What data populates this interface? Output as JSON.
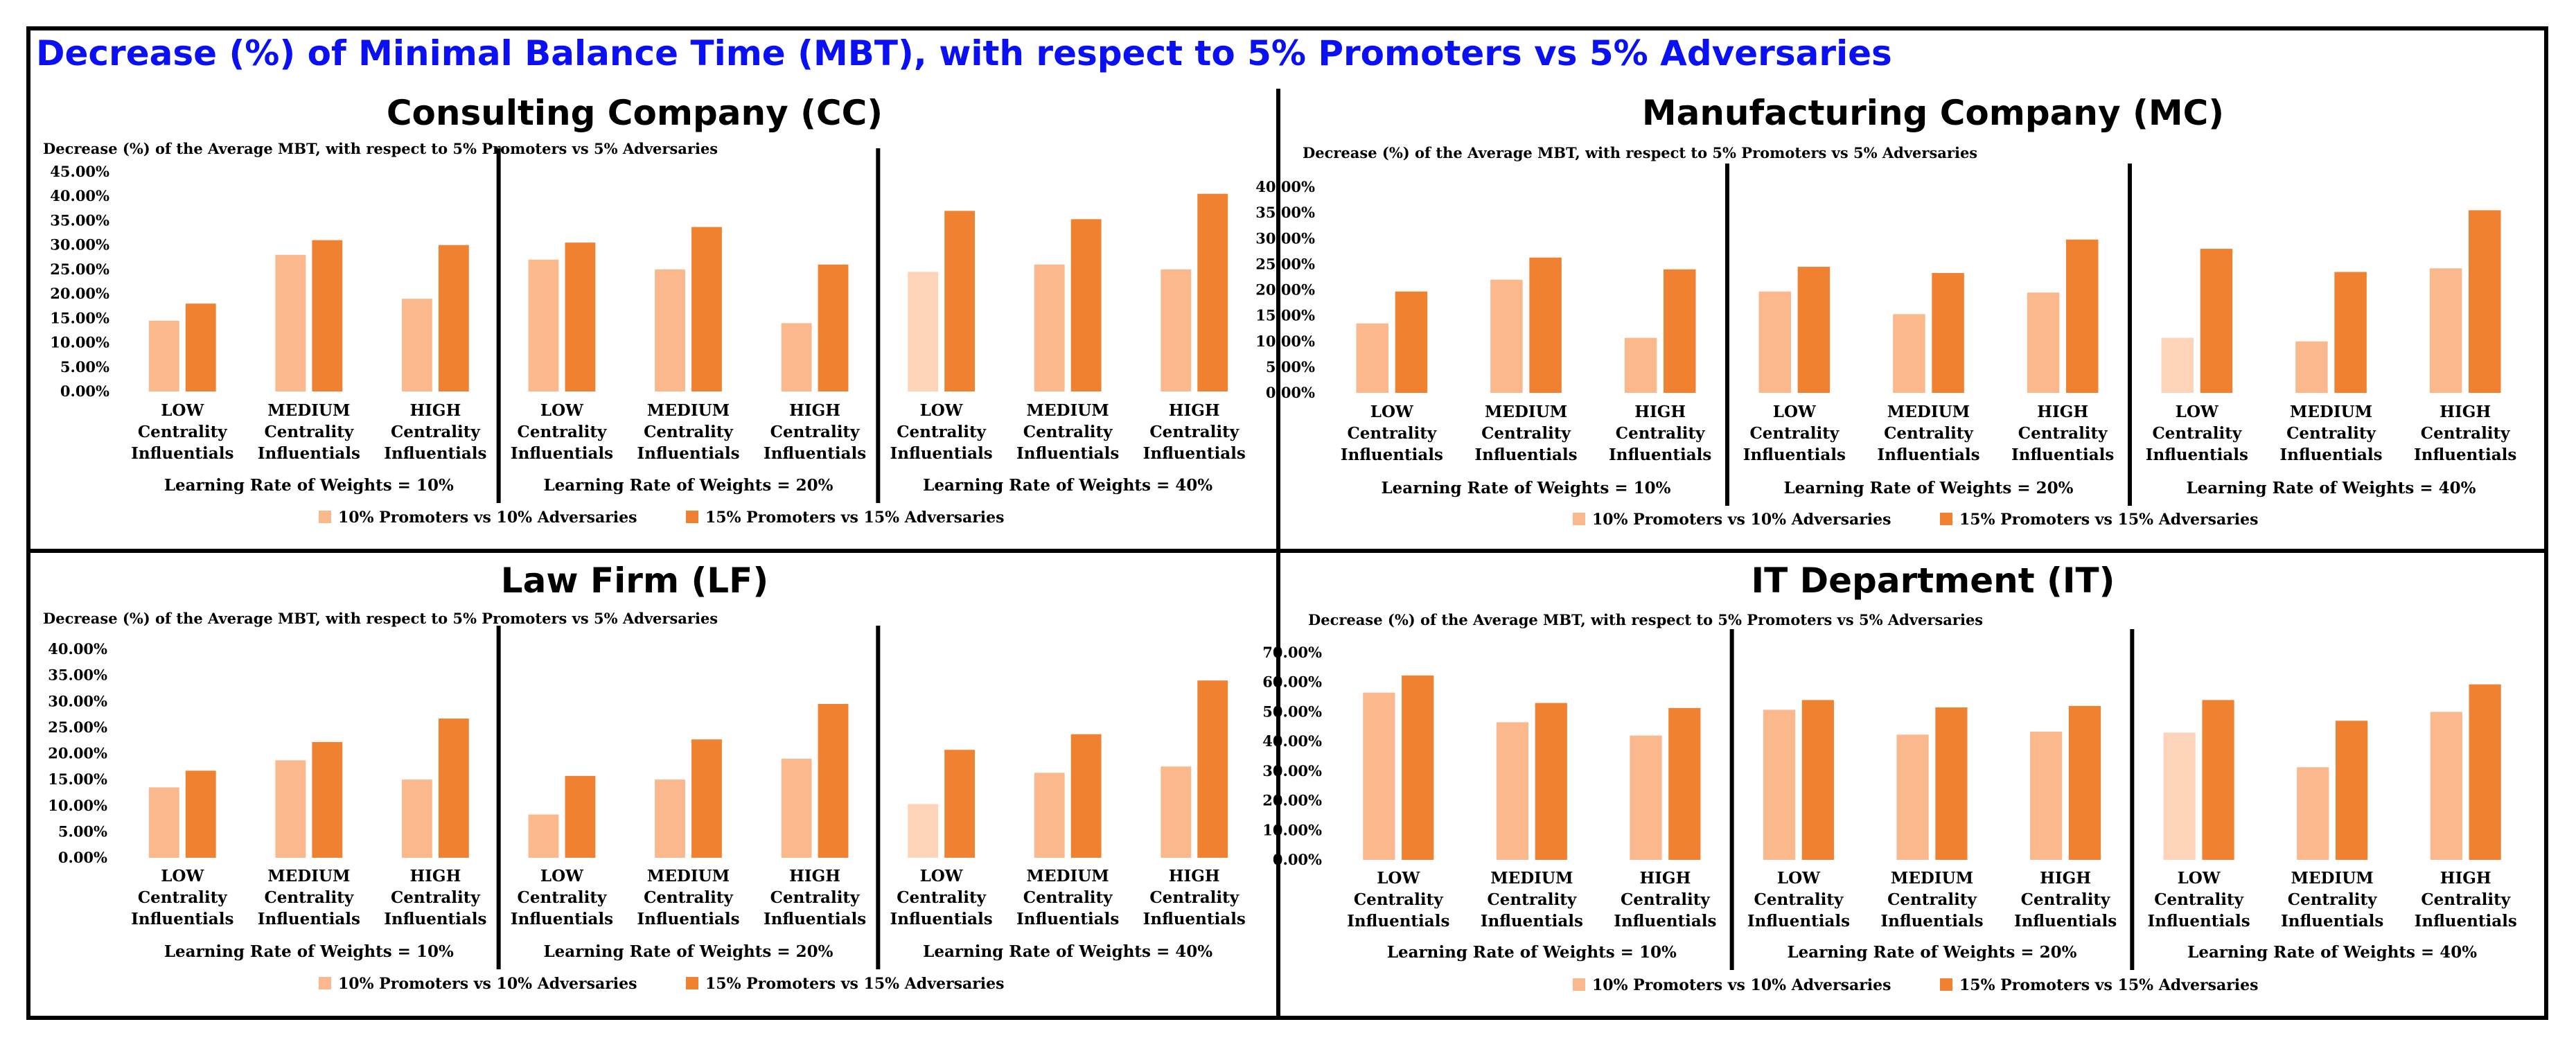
{
  "title": "Decrease (%) of Minimal Balance Time (MBT), with respect to 5% Promoters vs 5% Adversaries",
  "colors": {
    "light": "#fbb88d",
    "dark": "#f08131",
    "lightest": "#fdd3b9",
    "title": "#0b10f2"
  },
  "chart_data": [
    {
      "type": "bar",
      "title": "Consulting Company (CC)",
      "subtitle": "Decrease (%) of the Average MBT, with respect to 5% Promoters vs 5% Adversaries",
      "ylim": [
        0,
        45
      ],
      "yticks": [
        "0.00%",
        "5.00%",
        "10.00%",
        "15.00%",
        "20.00%",
        "25.00%",
        "30.00%",
        "35.00%",
        "40.00%",
        "45.00%"
      ],
      "groups": [
        {
          "label": "Learning Rate of Weights = 10%",
          "categories": [
            [
              "LOW",
              "Centrality",
              "Influentials"
            ],
            [
              "MEDIUM",
              "Centrality",
              "Influentials"
            ],
            [
              "HIGH",
              "Centrality",
              "Influentials"
            ]
          ],
          "series": [
            {
              "name": "10% Promoters vs 10% Adversaries",
              "values": [
                14.5,
                28,
                19
              ]
            },
            {
              "name": "15% Promoters vs 15% Adversaries",
              "values": [
                18,
                31,
                30
              ]
            }
          ]
        },
        {
          "label": "Learning Rate of Weights = 20%",
          "categories": [
            [
              "LOW",
              "Centrality",
              "Influentials"
            ],
            [
              "MEDIUM",
              "Centrality",
              "Influentials"
            ],
            [
              "HIGH",
              "Centrality",
              "Influentials"
            ]
          ],
          "series": [
            {
              "name": "10% Promoters vs 10% Adversaries",
              "values": [
                27,
                25,
                14
              ]
            },
            {
              "name": "15% Promoters vs 15% Adversaries",
              "values": [
                30.5,
                33.7,
                26
              ]
            }
          ]
        },
        {
          "label": "Learning Rate of Weights = 40%",
          "categories": [
            [
              "LOW",
              "Centrality",
              "Influentials"
            ],
            [
              "MEDIUM",
              "Centrality",
              "Influentials"
            ],
            [
              "HIGH",
              "Centrality",
              "Influentials"
            ]
          ],
          "series": [
            {
              "name": "10% Promoters vs 10% Adversaries",
              "values": [
                24.5,
                26,
                25
              ]
            },
            {
              "name": "15% Promoters vs 15% Adversaries",
              "values": [
                37,
                35.3,
                40.5
              ]
            }
          ]
        }
      ],
      "legend": [
        "10% Promoters vs 10% Adversaries",
        "15% Promoters vs 15% Adversaries"
      ]
    },
    {
      "type": "bar",
      "title": "Manufacturing Company (MC)",
      "subtitle": "Decrease (%) of the Average MBT, with respect to 5% Promoters vs 5% Adversaries",
      "ylim": [
        0,
        40
      ],
      "yticks": [
        "0.00%",
        "5.00%",
        "10.00%",
        "15.00%",
        "20.00%",
        "25.00%",
        "30.00%",
        "35.00%",
        "40.00%"
      ],
      "groups": [
        {
          "label": "Learning Rate of Weights = 10%",
          "categories": [
            [
              "LOW",
              "Centrality",
              "Influentials"
            ],
            [
              "MEDIUM",
              "Centrality",
              "Influentials"
            ],
            [
              "HIGH",
              "Centrality",
              "Influentials"
            ]
          ],
          "series": [
            {
              "name": "10% Promoters vs 10% Adversaries",
              "values": [
                13.5,
                22,
                10.7
              ]
            },
            {
              "name": "15% Promoters vs 15% Adversaries",
              "values": [
                19.7,
                26.3,
                24
              ]
            }
          ]
        },
        {
          "label": "Learning Rate of Weights = 20%",
          "categories": [
            [
              "LOW",
              "Centrality",
              "Influentials"
            ],
            [
              "MEDIUM",
              "Centrality",
              "Influentials"
            ],
            [
              "HIGH",
              "Centrality",
              "Influentials"
            ]
          ],
          "series": [
            {
              "name": "10% Promoters vs 10% Adversaries",
              "values": [
                19.7,
                15.3,
                19.5
              ]
            },
            {
              "name": "15% Promoters vs 15% Adversaries",
              "values": [
                24.5,
                23.3,
                29.8
              ]
            }
          ]
        },
        {
          "label": "Learning Rate of Weights = 40%",
          "categories": [
            [
              "LOW",
              "Centrality",
              "Influentials"
            ],
            [
              "MEDIUM",
              "Centrality",
              "Influentials"
            ],
            [
              "HIGH",
              "Centrality",
              "Influentials"
            ]
          ],
          "series": [
            {
              "name": "10% Promoters vs 10% Adversaries",
              "values": [
                10.7,
                10,
                24.2
              ]
            },
            {
              "name": "15% Promoters vs 15% Adversaries",
              "values": [
                28,
                23.5,
                35.5
              ]
            }
          ]
        }
      ],
      "legend": [
        "10% Promoters vs 10% Adversaries",
        "15% Promoters vs 15% Adversaries"
      ]
    },
    {
      "type": "bar",
      "title": "Law Firm (LF)",
      "subtitle": "Decrease (%) of the Average MBT, with respect to 5% Promoters vs 5% Adversaries",
      "ylim": [
        0,
        40
      ],
      "yticks": [
        "0.00%",
        "5.00%",
        "10.00%",
        "15.00%",
        "20.00%",
        "25.00%",
        "30.00%",
        "35.00%",
        "40.00%"
      ],
      "groups": [
        {
          "label": "Learning Rate of Weights = 10%",
          "categories": [
            [
              "LOW",
              "Centrality",
              "Influentials"
            ],
            [
              "MEDIUM",
              "Centrality",
              "Influentials"
            ],
            [
              "HIGH",
              "Centrality",
              "Influentials"
            ]
          ],
          "series": [
            {
              "name": "10% Promoters vs 10% Adversaries",
              "values": [
                13.5,
                18.7,
                15
              ]
            },
            {
              "name": "15% Promoters vs 15% Adversaries",
              "values": [
                16.7,
                22.2,
                26.7
              ]
            }
          ]
        },
        {
          "label": "Learning Rate of Weights = 20%",
          "categories": [
            [
              "LOW",
              "Centrality",
              "Influentials"
            ],
            [
              "MEDIUM",
              "Centrality",
              "Influentials"
            ],
            [
              "HIGH",
              "Centrality",
              "Influentials"
            ]
          ],
          "series": [
            {
              "name": "10% Promoters vs 10% Adversaries",
              "values": [
                8.3,
                15,
                19
              ]
            },
            {
              "name": "15% Promoters vs 15% Adversaries",
              "values": [
                15.7,
                22.7,
                29.5
              ]
            }
          ]
        },
        {
          "label": "Learning Rate of Weights = 40%",
          "categories": [
            [
              "LOW",
              "Centrality",
              "Influentials"
            ],
            [
              "MEDIUM",
              "Centrality",
              "Influentials"
            ],
            [
              "HIGH",
              "Centrality",
              "Influentials"
            ]
          ],
          "series": [
            {
              "name": "10% Promoters vs 10% Adversaries",
              "values": [
                10.3,
                16.3,
                17.5
              ]
            },
            {
              "name": "15% Promoters vs 15% Adversaries",
              "values": [
                20.7,
                23.7,
                34
              ]
            }
          ]
        }
      ],
      "legend": [
        "10% Promoters vs 10% Adversaries",
        "15% Promoters vs 15% Adversaries"
      ]
    },
    {
      "type": "bar",
      "title": "IT Department (IT)",
      "subtitle": "Decrease (%) of the Average MBT, with respect to 5% Promoters vs 5% Adversaries",
      "ylim": [
        0,
        70
      ],
      "yticks": [
        "0.00%",
        "10.00%",
        "20.00%",
        "30.00%",
        "40.00%",
        "50.00%",
        "60.00%",
        "70.00%"
      ],
      "groups": [
        {
          "label": "Learning Rate of Weights = 10%",
          "categories": [
            [
              "LOW",
              "Centrality",
              "Influentials"
            ],
            [
              "MEDIUM",
              "Centrality",
              "Influentials"
            ],
            [
              "HIGH",
              "Centrality",
              "Influentials"
            ]
          ],
          "series": [
            {
              "name": "10% Promoters vs 10% Adversaries",
              "values": [
                56.5,
                46.5,
                42
              ]
            },
            {
              "name": "15% Promoters vs 15% Adversaries",
              "values": [
                62.3,
                53,
                51.3
              ]
            }
          ]
        },
        {
          "label": "Learning Rate of Weights = 20%",
          "categories": [
            [
              "LOW",
              "Centrality",
              "Influentials"
            ],
            [
              "MEDIUM",
              "Centrality",
              "Influentials"
            ],
            [
              "HIGH",
              "Centrality",
              "Influentials"
            ]
          ],
          "series": [
            {
              "name": "10% Promoters vs 10% Adversaries",
              "values": [
                50.7,
                42.3,
                43.3
              ]
            },
            {
              "name": "15% Promoters vs 15% Adversaries",
              "values": [
                54,
                51.5,
                52
              ]
            }
          ]
        },
        {
          "label": "Learning Rate of Weights = 40%",
          "categories": [
            [
              "LOW",
              "Centrality",
              "Influentials"
            ],
            [
              "MEDIUM",
              "Centrality",
              "Influentials"
            ],
            [
              "HIGH",
              "Centrality",
              "Influentials"
            ]
          ],
          "series": [
            {
              "name": "10% Promoters vs 10% Adversaries",
              "values": [
                43,
                31.3,
                50
              ]
            },
            {
              "name": "15% Promoters vs 15% Adversaries",
              "values": [
                54,
                47,
                59.3
              ]
            }
          ]
        }
      ],
      "legend": [
        "10% Promoters vs 10% Adversaries",
        "15% Promoters vs 15% Adversaries"
      ]
    }
  ]
}
